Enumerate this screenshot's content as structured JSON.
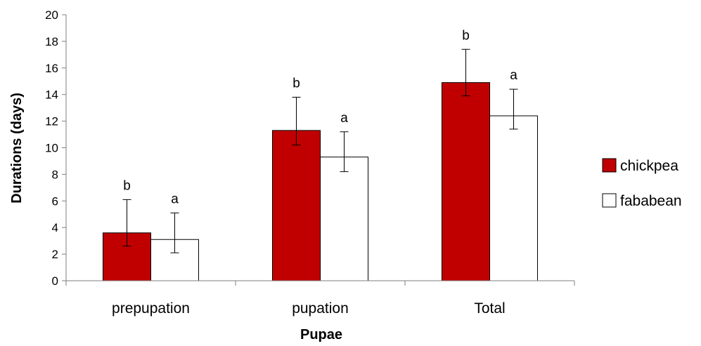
{
  "chart_data": {
    "type": "bar",
    "xlabel": "Pupae",
    "ylabel": "Durations (days)",
    "ylim": [
      0,
      20
    ],
    "ytick_step": 2,
    "yticks": [
      "0",
      "2",
      "4",
      "6",
      "8",
      "10",
      "12",
      "14",
      "16",
      "18",
      "20"
    ],
    "categories": [
      "prepupation",
      "pupation",
      "Total"
    ],
    "grid": false,
    "legend_position": "right",
    "series": [
      {
        "name": "chickpea",
        "color": "#c00000",
        "values": [
          3.6,
          11.3,
          14.9
        ],
        "err_upper": [
          6.1,
          13.8,
          17.4
        ],
        "err_lower": [
          2.6,
          10.2,
          13.9
        ],
        "labels": [
          "b",
          "b",
          "b"
        ]
      },
      {
        "name": "fababean",
        "color": "#ffffff",
        "values": [
          3.1,
          9.3,
          12.4
        ],
        "err_upper": [
          5.1,
          11.2,
          14.4
        ],
        "err_lower": [
          2.1,
          8.2,
          11.4
        ],
        "labels": [
          "a",
          "a",
          "a"
        ]
      }
    ]
  }
}
